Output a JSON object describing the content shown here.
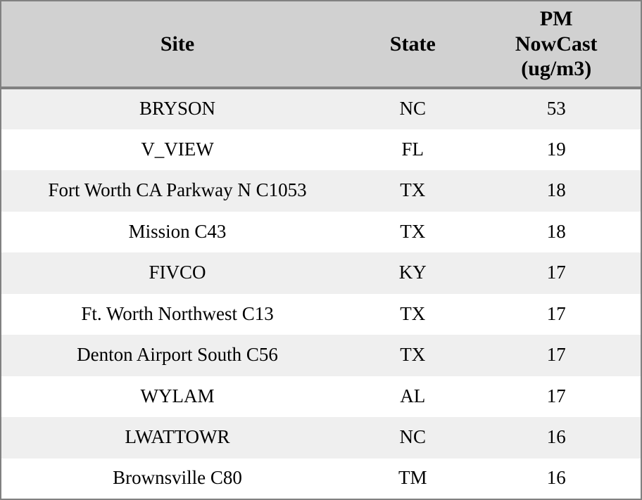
{
  "table": {
    "columns": [
      {
        "label": "Site"
      },
      {
        "label": "State"
      },
      {
        "label": "PM NowCast (ug/m3)"
      }
    ],
    "rows": [
      {
        "site": "BRYSON",
        "state": "NC",
        "pm_nowcast": "53"
      },
      {
        "site": "V_VIEW",
        "state": "FL",
        "pm_nowcast": "19"
      },
      {
        "site": "Fort Worth CA Parkway N C1053",
        "state": "TX",
        "pm_nowcast": "18"
      },
      {
        "site": "Mission C43",
        "state": "TX",
        "pm_nowcast": "18"
      },
      {
        "site": "FIVCO",
        "state": "KY",
        "pm_nowcast": "17"
      },
      {
        "site": "Ft. Worth Northwest C13",
        "state": "TX",
        "pm_nowcast": "17"
      },
      {
        "site": "Denton Airport South C56",
        "state": "TX",
        "pm_nowcast": "17"
      },
      {
        "site": "WYLAM",
        "state": "AL",
        "pm_nowcast": "17"
      },
      {
        "site": "LWATTOWR",
        "state": "NC",
        "pm_nowcast": "16"
      },
      {
        "site": "Brownsville C80",
        "state": "TM",
        "pm_nowcast": "16"
      }
    ]
  },
  "colors": {
    "header_bg": "#d1d1d1",
    "row_odd_bg": "#efefef",
    "row_even_bg": "#ffffff",
    "border": "#818181",
    "text": "#000000"
  },
  "chart_data": {
    "type": "table",
    "columns": [
      "Site",
      "State",
      "PM NowCast (ug/m3)"
    ],
    "rows": [
      [
        "BRYSON",
        "NC",
        53
      ],
      [
        "V_VIEW",
        "FL",
        19
      ],
      [
        "Fort Worth CA Parkway N C1053",
        "TX",
        18
      ],
      [
        "Mission C43",
        "TX",
        18
      ],
      [
        "FIVCO",
        "KY",
        17
      ],
      [
        "Ft. Worth Northwest C13",
        "TX",
        17
      ],
      [
        "Denton Airport South C56",
        "TX",
        17
      ],
      [
        "WYLAM",
        "AL",
        17
      ],
      [
        "LWATTOWR",
        "NC",
        16
      ],
      [
        "Brownsville C80",
        "TM",
        16
      ]
    ],
    "title": "",
    "layout_hints": {
      "header_style": "bold gray band with thick bottom rule",
      "row_striping": "odd rows light gray, even rows white",
      "alignment": "all columns centered"
    }
  }
}
